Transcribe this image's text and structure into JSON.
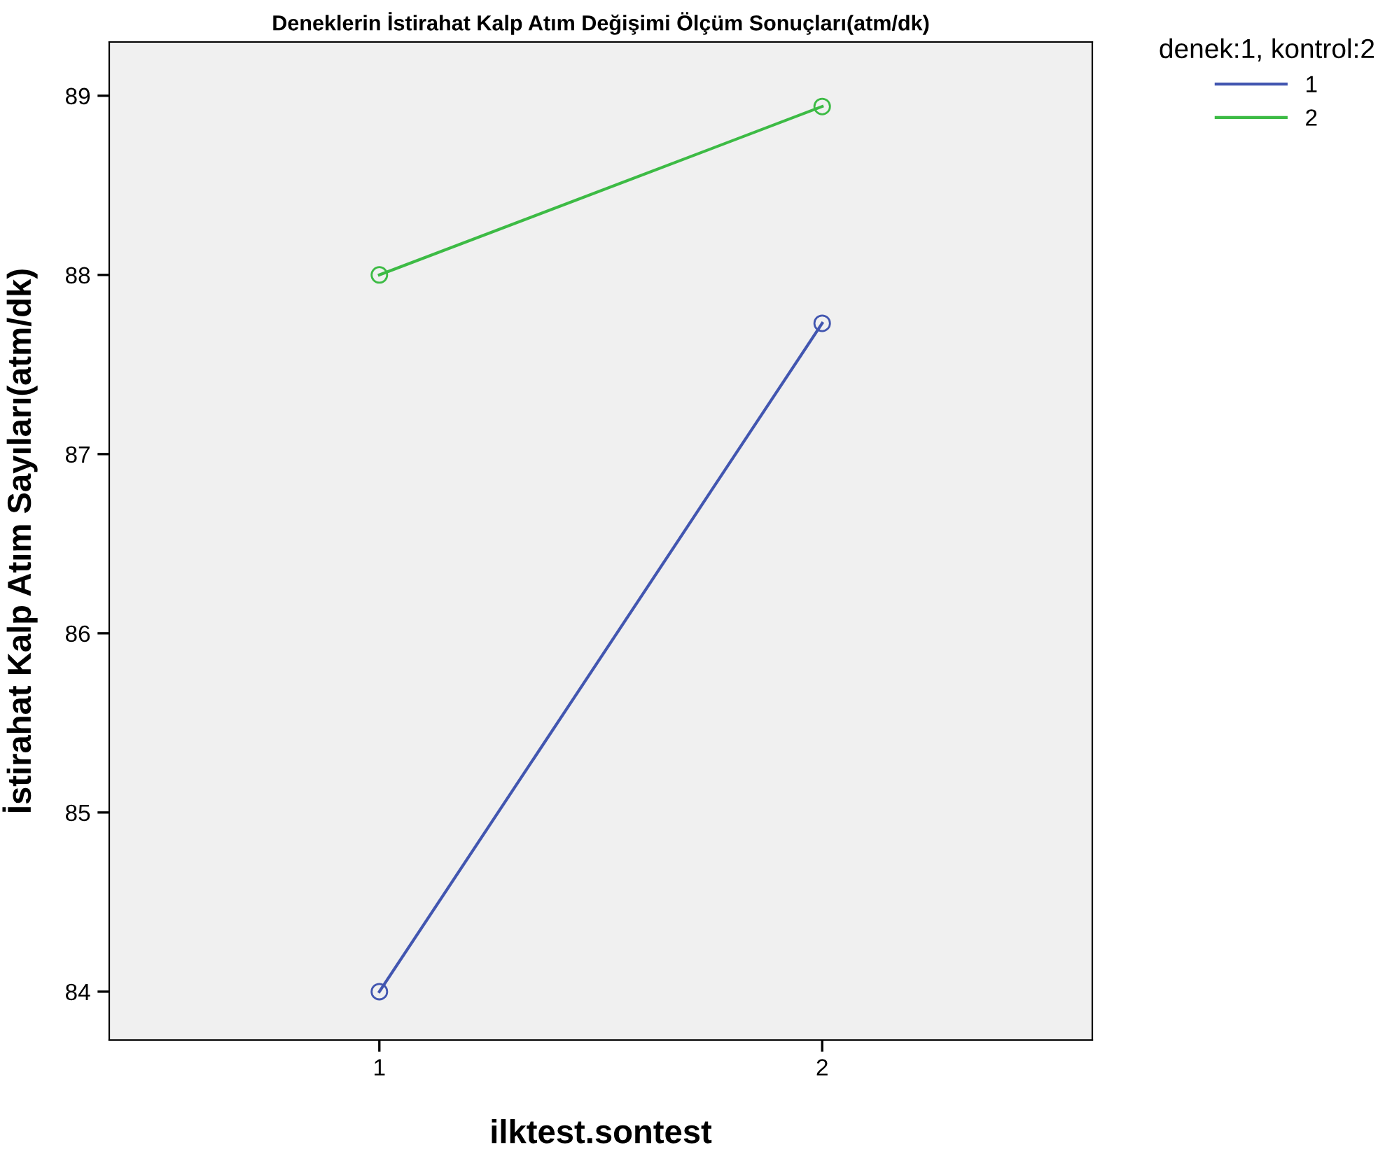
{
  "chart_data": {
    "type": "line",
    "title": "Deneklerin İstirahat Kalp Atım Değişimi Ölçüm Sonuçları(atm/dk)",
    "xlabel": "ilktest.sontest",
    "ylabel": "İstirahat Kalp Atım Sayıları(atm/dk)",
    "legend_title": "denek:1, kontrol:2",
    "categories": [
      "1",
      "2"
    ],
    "series": [
      {
        "name": "1",
        "color": "#4256b0",
        "values": [
          84.0,
          87.73
        ]
      },
      {
        "name": "2",
        "color": "#3dbb45",
        "values": [
          88.0,
          88.94
        ]
      }
    ],
    "ylim": [
      83.73,
      89.3
    ],
    "yticks": [
      84,
      85,
      86,
      87,
      88,
      89
    ],
    "grid": false,
    "legend": "top right",
    "marker": "circle",
    "line_style": "solid"
  }
}
